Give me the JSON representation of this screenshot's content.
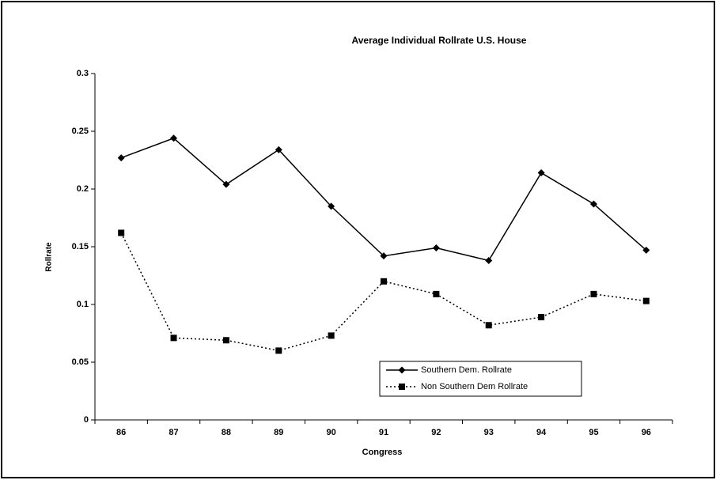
{
  "chart_data": {
    "type": "line",
    "title": "Average Individual Rollrate U.S. House",
    "xlabel": "Congress",
    "ylabel": "Rollrate",
    "categories": [
      "86",
      "87",
      "88",
      "89",
      "90",
      "91",
      "92",
      "93",
      "94",
      "95",
      "96"
    ],
    "series": [
      {
        "name": "Southern Dem. Rollrate",
        "color": "#000000",
        "line": "solid",
        "marker": "diamond",
        "values": [
          0.227,
          0.244,
          0.204,
          0.234,
          0.185,
          0.142,
          0.149,
          0.138,
          0.214,
          0.187,
          0.147
        ]
      },
      {
        "name": "Non Southern Dem Rollrate",
        "color": "#000000",
        "line": "dotted",
        "marker": "square",
        "values": [
          0.162,
          0.071,
          0.069,
          0.06,
          0.073,
          0.12,
          0.109,
          0.082,
          0.089,
          0.109,
          0.103
        ]
      }
    ],
    "ylim": [
      0,
      0.3
    ],
    "yticks": [
      0,
      0.05,
      0.1,
      0.15,
      0.2,
      0.25,
      0.3
    ],
    "grid": false,
    "legend": "lower right"
  }
}
